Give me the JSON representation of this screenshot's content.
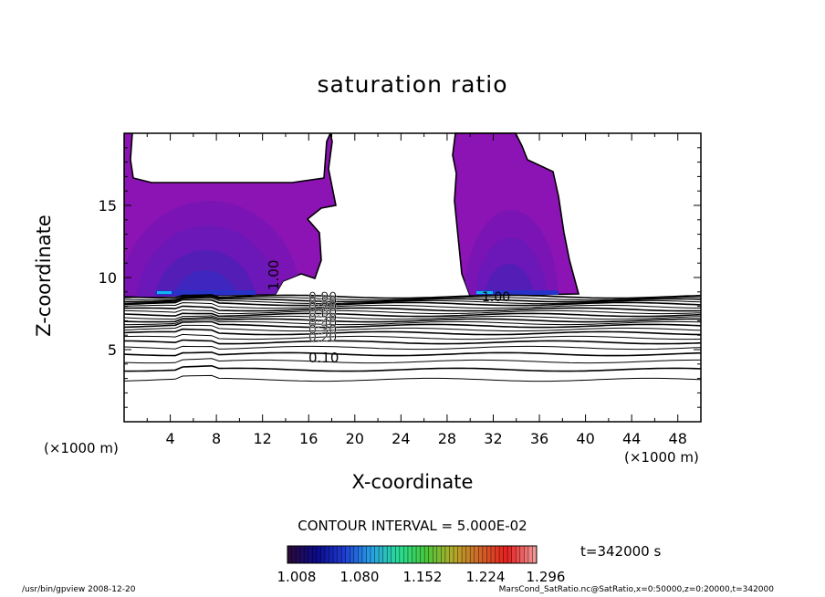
{
  "chart_data": {
    "type": "contour",
    "title": "saturation ratio",
    "xlabel": "X-coordinate",
    "ylabel": "Z-coordinate",
    "x_unit": "(×1000 m)",
    "y_unit": "(×1000 m)",
    "xlim": [
      0,
      50
    ],
    "ylim": [
      0,
      20
    ],
    "x_ticks": [
      4,
      8,
      12,
      16,
      20,
      24,
      28,
      32,
      36,
      40,
      44,
      48
    ],
    "y_ticks": [
      5,
      10,
      15
    ],
    "contour_interval": "CONTOUR INTERVAL = 5.000E-02",
    "contour_labels": [
      "0.10",
      "0.20",
      "0.30",
      "0.40",
      "0.50",
      "0.60",
      "0.70",
      "0.80",
      "0.90",
      "1.00"
    ],
    "colorbar": {
      "tick_labels": [
        "1.008",
        "1.080",
        "1.152",
        "1.224",
        "1.296"
      ],
      "colors": [
        "#2a0a3a",
        "#0a0a8a",
        "#1e3cd2",
        "#28a0e6",
        "#28dc96",
        "#46c83c",
        "#b4aa28",
        "#d26428",
        "#e61e1e",
        "#f09696"
      ]
    },
    "fill_colors": {
      "purple": "#8c14b4",
      "violet": "#7814b4",
      "indigo": "#501eb4",
      "blue": "#2832c8",
      "cyan": "#14b4f0"
    },
    "time_label": "t=342000 s"
  },
  "footer": {
    "left": "/usr/bin/gpview   2008-12-20",
    "right": "MarsCond_SatRatio.nc@SatRatio,x=0:50000,z=0:20000,t=342000"
  }
}
